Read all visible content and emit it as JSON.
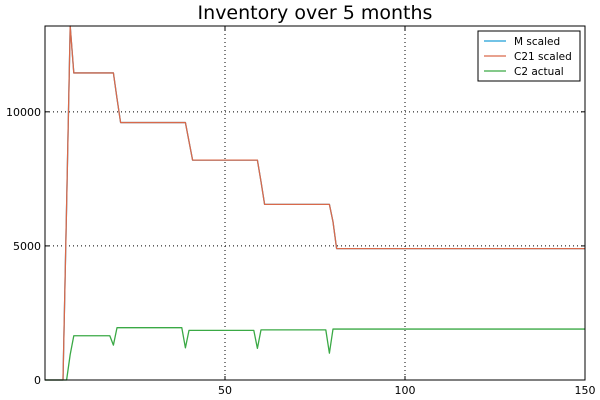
{
  "chart_data": {
    "type": "line",
    "title": "Inventory over 5 months",
    "xlabel": "",
    "ylabel": "",
    "xlim": [
      0,
      150
    ],
    "ylim": [
      0,
      13200
    ],
    "xticks": [
      50,
      100,
      150
    ],
    "yticks": [
      0,
      5000,
      10000
    ],
    "grid": true,
    "legend_position": "top-right",
    "series": [
      {
        "name": "M scaled",
        "color": "#1f9fd8",
        "x": [
          0,
          5,
          6,
          7,
          8,
          19,
          20,
          21,
          39,
          40,
          41,
          59,
          60,
          61,
          79,
          80,
          81,
          150
        ],
        "y": [
          0,
          0,
          6500,
          13200,
          11450,
          11450,
          10500,
          9600,
          9600,
          8900,
          8200,
          8200,
          7400,
          6550,
          6550,
          5900,
          4900,
          4900
        ]
      },
      {
        "name": "C21 scaled",
        "color": "#d9694a",
        "x": [
          0,
          5,
          6,
          7,
          8,
          19,
          20,
          21,
          39,
          40,
          41,
          59,
          60,
          61,
          79,
          80,
          81,
          150
        ],
        "y": [
          0,
          0,
          6500,
          13200,
          11450,
          11450,
          10500,
          9600,
          9600,
          8900,
          8200,
          8200,
          7400,
          6550,
          6550,
          5900,
          4900,
          4900
        ]
      },
      {
        "name": "C2 actual",
        "color": "#3aa945",
        "x": [
          0,
          6,
          7,
          8,
          18,
          19,
          20,
          38,
          39,
          40,
          58,
          59,
          60,
          78,
          79,
          80,
          150
        ],
        "y": [
          0,
          0,
          950,
          1650,
          1650,
          1300,
          1950,
          1950,
          1200,
          1850,
          1850,
          1180,
          1870,
          1870,
          1000,
          1900,
          1900
        ]
      }
    ]
  }
}
